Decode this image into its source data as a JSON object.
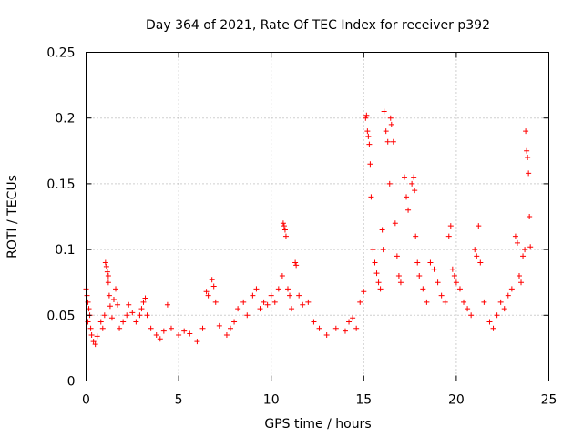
{
  "chart_data": {
    "type": "scatter",
    "title": "Day 364 of 2021, Rate Of TEC Index for receiver p392",
    "xlabel": "GPS time / hours",
    "ylabel": "ROTI / TECUs",
    "xlim": [
      0,
      25
    ],
    "ylim": [
      0,
      0.25
    ],
    "x_ticks": [
      "0",
      "5",
      "10",
      "15",
      "20",
      "25"
    ],
    "y_ticks": [
      "0",
      "0.05",
      "0.1",
      "0.15",
      "0.2",
      "0.25"
    ],
    "grid": true,
    "marker": "+",
    "color": "#ff0000",
    "series": [
      {
        "name": "ROTI",
        "points": [
          [
            0.0,
            0.07
          ],
          [
            0.05,
            0.065
          ],
          [
            0.1,
            0.06
          ],
          [
            0.15,
            0.055
          ],
          [
            0.2,
            0.05
          ],
          [
            0.1,
            0.045
          ],
          [
            0.25,
            0.04
          ],
          [
            0.3,
            0.035
          ],
          [
            0.4,
            0.03
          ],
          [
            0.5,
            0.028
          ],
          [
            0.6,
            0.034
          ],
          [
            0.8,
            0.045
          ],
          [
            0.9,
            0.04
          ],
          [
            1.0,
            0.05
          ],
          [
            1.05,
            0.09
          ],
          [
            1.1,
            0.087
          ],
          [
            1.15,
            0.083
          ],
          [
            1.2,
            0.08
          ],
          [
            1.2,
            0.075
          ],
          [
            1.25,
            0.065
          ],
          [
            1.3,
            0.057
          ],
          [
            1.4,
            0.048
          ],
          [
            1.5,
            0.062
          ],
          [
            1.6,
            0.07
          ],
          [
            1.7,
            0.058
          ],
          [
            1.8,
            0.04
          ],
          [
            2.0,
            0.045
          ],
          [
            2.2,
            0.05
          ],
          [
            2.3,
            0.058
          ],
          [
            2.5,
            0.052
          ],
          [
            2.7,
            0.045
          ],
          [
            2.9,
            0.05
          ],
          [
            3.0,
            0.055
          ],
          [
            3.1,
            0.06
          ],
          [
            3.2,
            0.063
          ],
          [
            3.3,
            0.05
          ],
          [
            3.5,
            0.04
          ],
          [
            3.8,
            0.035
          ],
          [
            4.0,
            0.032
          ],
          [
            4.2,
            0.038
          ],
          [
            4.4,
            0.058
          ],
          [
            4.6,
            0.04
          ],
          [
            5.0,
            0.035
          ],
          [
            5.3,
            0.038
          ],
          [
            5.6,
            0.036
          ],
          [
            6.0,
            0.03
          ],
          [
            6.3,
            0.04
          ],
          [
            6.5,
            0.068
          ],
          [
            6.6,
            0.065
          ],
          [
            6.8,
            0.077
          ],
          [
            6.9,
            0.072
          ],
          [
            7.0,
            0.06
          ],
          [
            7.2,
            0.042
          ],
          [
            7.6,
            0.035
          ],
          [
            7.8,
            0.04
          ],
          [
            8.0,
            0.045
          ],
          [
            8.2,
            0.055
          ],
          [
            8.5,
            0.06
          ],
          [
            8.7,
            0.05
          ],
          [
            9.0,
            0.065
          ],
          [
            9.2,
            0.07
          ],
          [
            9.4,
            0.055
          ],
          [
            9.6,
            0.06
          ],
          [
            9.8,
            0.058
          ],
          [
            10.0,
            0.065
          ],
          [
            10.2,
            0.06
          ],
          [
            10.4,
            0.07
          ],
          [
            10.6,
            0.08
          ],
          [
            10.65,
            0.12
          ],
          [
            10.7,
            0.118
          ],
          [
            10.75,
            0.115
          ],
          [
            10.8,
            0.11
          ],
          [
            10.9,
            0.07
          ],
          [
            11.0,
            0.065
          ],
          [
            11.1,
            0.055
          ],
          [
            11.3,
            0.09
          ],
          [
            11.35,
            0.088
          ],
          [
            11.5,
            0.065
          ],
          [
            11.7,
            0.058
          ],
          [
            12.0,
            0.06
          ],
          [
            12.3,
            0.045
          ],
          [
            12.6,
            0.04
          ],
          [
            13.0,
            0.035
          ],
          [
            13.5,
            0.04
          ],
          [
            14.0,
            0.038
          ],
          [
            14.2,
            0.045
          ],
          [
            14.4,
            0.048
          ],
          [
            14.6,
            0.04
          ],
          [
            14.8,
            0.06
          ],
          [
            15.0,
            0.068
          ],
          [
            15.1,
            0.2
          ],
          [
            15.15,
            0.202
          ],
          [
            15.2,
            0.19
          ],
          [
            15.25,
            0.186
          ],
          [
            15.3,
            0.18
          ],
          [
            15.35,
            0.165
          ],
          [
            15.4,
            0.14
          ],
          [
            15.5,
            0.1
          ],
          [
            15.6,
            0.09
          ],
          [
            15.7,
            0.082
          ],
          [
            15.8,
            0.075
          ],
          [
            15.9,
            0.07
          ],
          [
            16.0,
            0.115
          ],
          [
            16.05,
            0.1
          ],
          [
            16.1,
            0.205
          ],
          [
            16.2,
            0.19
          ],
          [
            16.3,
            0.182
          ],
          [
            16.4,
            0.15
          ],
          [
            16.45,
            0.2
          ],
          [
            16.5,
            0.195
          ],
          [
            16.6,
            0.182
          ],
          [
            16.7,
            0.12
          ],
          [
            16.8,
            0.095
          ],
          [
            16.9,
            0.08
          ],
          [
            17.0,
            0.075
          ],
          [
            17.2,
            0.155
          ],
          [
            17.3,
            0.14
          ],
          [
            17.4,
            0.13
          ],
          [
            17.6,
            0.15
          ],
          [
            17.7,
            0.155
          ],
          [
            17.75,
            0.145
          ],
          [
            17.8,
            0.11
          ],
          [
            17.9,
            0.09
          ],
          [
            18.0,
            0.08
          ],
          [
            18.2,
            0.07
          ],
          [
            18.4,
            0.06
          ],
          [
            18.6,
            0.09
          ],
          [
            18.8,
            0.085
          ],
          [
            19.0,
            0.075
          ],
          [
            19.2,
            0.065
          ],
          [
            19.4,
            0.06
          ],
          [
            19.6,
            0.11
          ],
          [
            19.7,
            0.118
          ],
          [
            19.8,
            0.085
          ],
          [
            19.9,
            0.08
          ],
          [
            20.0,
            0.075
          ],
          [
            20.2,
            0.07
          ],
          [
            20.4,
            0.06
          ],
          [
            20.6,
            0.055
          ],
          [
            20.8,
            0.05
          ],
          [
            21.0,
            0.1
          ],
          [
            21.1,
            0.095
          ],
          [
            21.2,
            0.118
          ],
          [
            21.3,
            0.09
          ],
          [
            21.5,
            0.06
          ],
          [
            21.8,
            0.045
          ],
          [
            22.0,
            0.04
          ],
          [
            22.2,
            0.05
          ],
          [
            22.4,
            0.06
          ],
          [
            22.6,
            0.055
          ],
          [
            22.8,
            0.065
          ],
          [
            23.0,
            0.07
          ],
          [
            23.2,
            0.11
          ],
          [
            23.3,
            0.105
          ],
          [
            23.4,
            0.08
          ],
          [
            23.5,
            0.075
          ],
          [
            23.6,
            0.095
          ],
          [
            23.7,
            0.1
          ],
          [
            23.75,
            0.19
          ],
          [
            23.8,
            0.175
          ],
          [
            23.85,
            0.17
          ],
          [
            23.9,
            0.158
          ],
          [
            23.95,
            0.125
          ],
          [
            24.0,
            0.102
          ]
        ]
      }
    ]
  }
}
